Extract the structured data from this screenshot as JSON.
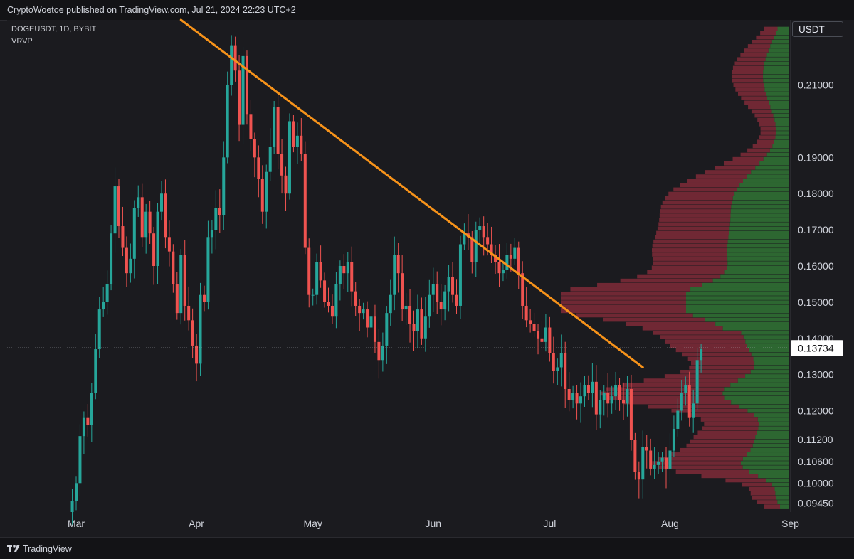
{
  "header": {
    "published_text": "CryptoWoetoe published on TradingView.com, Jul 21, 2024 22:23 UTC+2"
  },
  "legend": {
    "symbol_line": "DOGEUSDT, 1D, BYBIT",
    "indicator": "VRVP"
  },
  "price_axis": {
    "unit": "USDT",
    "current_price_label": "0.13734"
  },
  "footer": {
    "brand": "TradingView"
  },
  "colors": {
    "background": "#1b1b1f",
    "up": "#26a69a",
    "down": "#ef5350",
    "trendline": "#f7931a",
    "vp_up": "#2e6b33",
    "vp_down": "#7a2a36"
  },
  "chart_data": {
    "type": "candlestick",
    "title": "DOGEUSDT, 1D, BYBIT",
    "x_ticks": [
      "Mar",
      "Apr",
      "May",
      "Jun",
      "Jul",
      "Aug",
      "Sep"
    ],
    "y_ticks": [
      0.21,
      0.19,
      0.18,
      0.17,
      0.16,
      0.15,
      0.14,
      0.13,
      0.12,
      0.112,
      0.106,
      0.1,
      0.0945
    ],
    "y_tick_labels": [
      "0.21000",
      "0.19000",
      "0.18000",
      "0.17000",
      "0.16000",
      "0.15000",
      "0.14000",
      "0.13000",
      "0.12000",
      "0.11200",
      "0.10600",
      "0.10000",
      "0.09450"
    ],
    "ylim": [
      0.092,
      0.228
    ],
    "last_price": 0.13734,
    "trendline": {
      "start": {
        "date": "2024-03-28",
        "price": 0.228
      },
      "end": {
        "date": "2024-07-25",
        "price": 0.132
      }
    },
    "closes": [
      0.095,
      0.1,
      0.113,
      0.118,
      0.116,
      0.125,
      0.137,
      0.148,
      0.15,
      0.155,
      0.169,
      0.182,
      0.171,
      0.165,
      0.158,
      0.162,
      0.176,
      0.179,
      0.168,
      0.175,
      0.169,
      0.16,
      0.175,
      0.18,
      0.168,
      0.164,
      0.155,
      0.147,
      0.163,
      0.149,
      0.145,
      0.138,
      0.133,
      0.152,
      0.15,
      0.168,
      0.17,
      0.176,
      0.174,
      0.19,
      0.21,
      0.221,
      0.214,
      0.199,
      0.218,
      0.202,
      0.195,
      0.19,
      0.184,
      0.175,
      0.186,
      0.193,
      0.204,
      0.191,
      0.185,
      0.18,
      0.2,
      0.193,
      0.196,
      0.191,
      0.165,
      0.152,
      0.152,
      0.161,
      0.156,
      0.15,
      0.149,
      0.146,
      0.155,
      0.16,
      0.158,
      0.161,
      0.153,
      0.149,
      0.147,
      0.148,
      0.143,
      0.146,
      0.139,
      0.134,
      0.138,
      0.147,
      0.152,
      0.163,
      0.158,
      0.148,
      0.149,
      0.144,
      0.142,
      0.148,
      0.14,
      0.146,
      0.152,
      0.155,
      0.15,
      0.148,
      0.153,
      0.157,
      0.152,
      0.149,
      0.166,
      0.169,
      0.168,
      0.161,
      0.17,
      0.171,
      0.168,
      0.166,
      0.163,
      0.161,
      0.158,
      0.159,
      0.163,
      0.162,
      0.165,
      0.158,
      0.149,
      0.145,
      0.144,
      0.142,
      0.14,
      0.139,
      0.143,
      0.136,
      0.131,
      0.132,
      0.136,
      0.126,
      0.123,
      0.125,
      0.122,
      0.124,
      0.127,
      0.125,
      0.128,
      0.119,
      0.123,
      0.125,
      0.122,
      0.124,
      0.127,
      0.123,
      0.122,
      0.126,
      0.112,
      0.103,
      0.101,
      0.11,
      0.109,
      0.104,
      0.105,
      0.106,
      0.107,
      0.104,
      0.109,
      0.115,
      0.12,
      0.125,
      0.127,
      0.118,
      0.122,
      0.134,
      0.137
    ]
  }
}
